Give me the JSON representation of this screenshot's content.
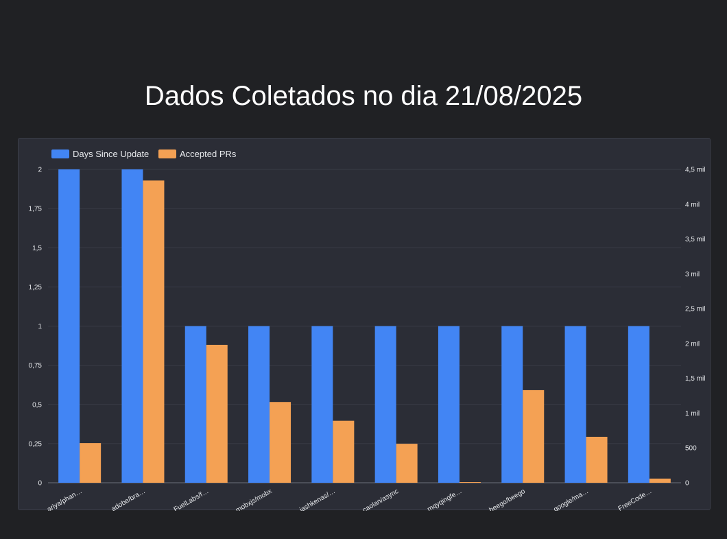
{
  "page": {
    "title": "Dados Coletados no dia 21/08/2025"
  },
  "chart_data": {
    "type": "bar",
    "categories": [
      "ariya/phan…",
      "adobe/bra…",
      "FuelLabs/f…",
      "mobxjs/mobx",
      "jashkenas/…",
      "caolan/async",
      "mqyqingfe…",
      "beego/beego",
      "google/ma…",
      "FreeCode…"
    ],
    "series": [
      {
        "name": "Days Since Update",
        "axis": "left",
        "color": "#4285f4",
        "values": [
          2,
          2,
          1,
          1,
          1,
          1,
          1,
          1,
          1,
          1
        ]
      },
      {
        "name": "Accepted PRs",
        "axis": "right",
        "color": "#f4a154",
        "values": [
          570,
          4340,
          1980,
          1160,
          890,
          560,
          5,
          1330,
          660,
          60
        ]
      }
    ],
    "y_left": {
      "min": 0,
      "max": 2,
      "ticks": [
        0,
        0.25,
        0.5,
        0.75,
        1,
        1.25,
        1.5,
        1.75,
        2
      ],
      "tick_labels": [
        "0",
        "0,25",
        "0,5",
        "0,75",
        "1",
        "1,25",
        "1,5",
        "1,75",
        "2"
      ]
    },
    "y_right": {
      "min": 0,
      "max": 4500,
      "ticks": [
        0,
        500,
        1000,
        1500,
        2000,
        2500,
        3000,
        3500,
        4000,
        4500
      ],
      "tick_labels": [
        "0",
        "500",
        "1 mil",
        "1,5 mil",
        "2 mil",
        "2,5 mil",
        "3 mil",
        "3,5 mil",
        "4 mil",
        "4,5 mil"
      ]
    },
    "grid": true,
    "legend_position": "top-left",
    "colors": {
      "background": "#202124",
      "card": "#2b2d36",
      "grid": "#3a3d47",
      "text": "#e8eaed"
    }
  }
}
